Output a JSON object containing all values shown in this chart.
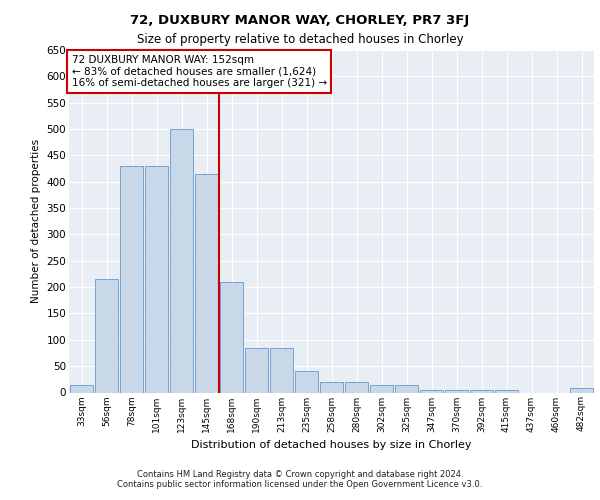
{
  "title1": "72, DUXBURY MANOR WAY, CHORLEY, PR7 3FJ",
  "title2": "Size of property relative to detached houses in Chorley",
  "xlabel": "Distribution of detached houses by size in Chorley",
  "ylabel": "Number of detached properties",
  "footnote1": "Contains HM Land Registry data © Crown copyright and database right 2024.",
  "footnote2": "Contains public sector information licensed under the Open Government Licence v3.0.",
  "categories": [
    "33sqm",
    "56sqm",
    "78sqm",
    "101sqm",
    "123sqm",
    "145sqm",
    "168sqm",
    "190sqm",
    "213sqm",
    "235sqm",
    "258sqm",
    "280sqm",
    "302sqm",
    "325sqm",
    "347sqm",
    "370sqm",
    "392sqm",
    "415sqm",
    "437sqm",
    "460sqm",
    "482sqm"
  ],
  "values": [
    15,
    215,
    430,
    430,
    500,
    415,
    210,
    85,
    85,
    40,
    20,
    20,
    15,
    15,
    5,
    5,
    5,
    5,
    0,
    0,
    8
  ],
  "bar_color": "#c8d8e8",
  "bar_edgecolor": "#6699cc",
  "background_color": "#e8eef4",
  "grid_color": "#ffffff",
  "vline_x": 5.5,
  "vline_color": "#cc0000",
  "annotation_text": "72 DUXBURY MANOR WAY: 152sqm\n← 83% of detached houses are smaller (1,624)\n16% of semi-detached houses are larger (321) →",
  "annotation_box_color": "#ffffff",
  "annotation_box_edgecolor": "#cc0000",
  "ylim": [
    0,
    650
  ],
  "yticks": [
    0,
    50,
    100,
    150,
    200,
    250,
    300,
    350,
    400,
    450,
    500,
    550,
    600,
    650
  ]
}
